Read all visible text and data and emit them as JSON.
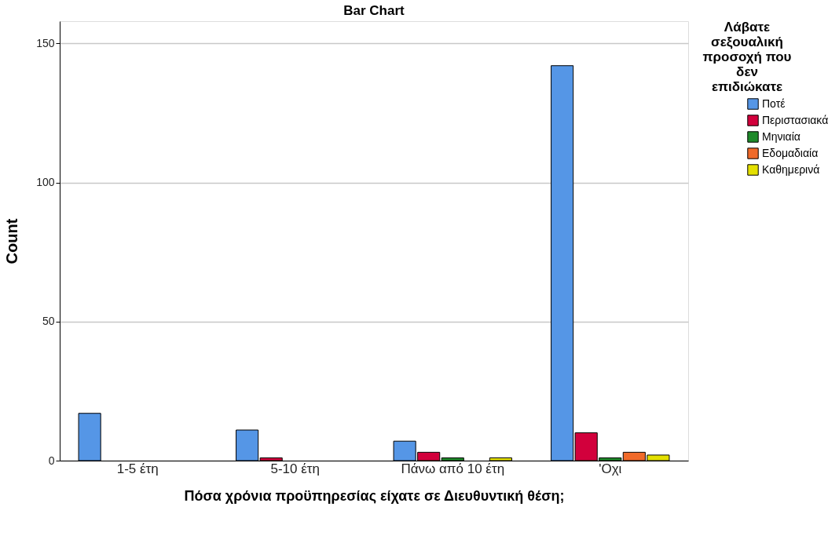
{
  "chart_data": {
    "type": "bar",
    "title": "Bar Chart",
    "xlabel": "Πόσα χρόνια προϋπηρεσίας είχατε σε Διευθυντική θέση;",
    "ylabel": "Count",
    "legend_title": "Λάβατε σεξουαλική προσοχή που δεν επιδιώκατε",
    "categories": [
      "1-5 έτη",
      "5-10 έτη",
      "Πάνω από 10 έτη",
      "'Οχι"
    ],
    "series": [
      {
        "name": "Ποτέ",
        "color": "#5596e6",
        "values": [
          17,
          11,
          7,
          142
        ]
      },
      {
        "name": "Περιστασιακά",
        "color": "#d2003c",
        "values": [
          null,
          1,
          3,
          10
        ]
      },
      {
        "name": "Μηνιαία",
        "color": "#1e8a2a",
        "values": [
          null,
          null,
          1,
          1
        ]
      },
      {
        "name": "Εδομαδιαία",
        "color": "#f06a2a",
        "values": [
          null,
          null,
          null,
          3
        ]
      },
      {
        "name": "Καθημερινά",
        "color": "#e4e000",
        "values": [
          null,
          null,
          1,
          2
        ]
      }
    ],
    "ylim": [
      0,
      158
    ],
    "yticks": [
      0,
      50,
      100,
      150
    ],
    "grid": "y",
    "legend": "top right"
  }
}
